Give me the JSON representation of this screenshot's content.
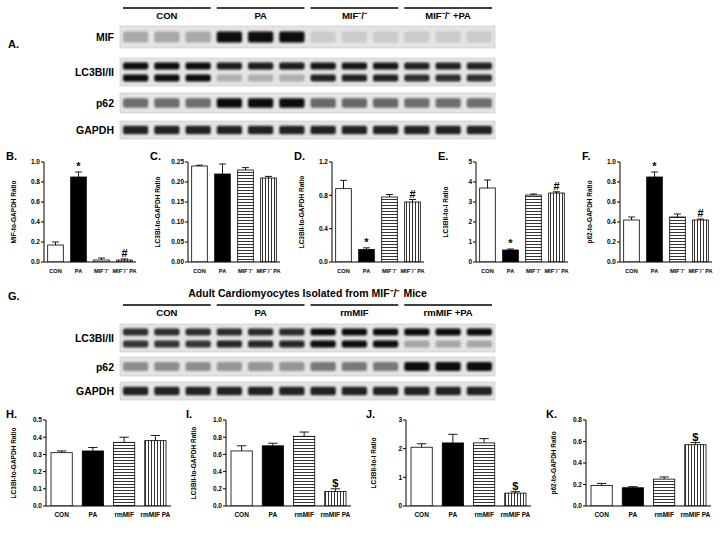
{
  "blots": [
    {
      "panel": "A.",
      "groups": [
        "CON",
        "PA",
        "MIF⁻/⁻",
        "MIF⁻/⁻ +PA"
      ],
      "rows": [
        "MIF",
        "LC3BI/II",
        "p62",
        "GAPDH"
      ]
    },
    {
      "panel": "G.",
      "title": "Adult Cardiomyocytes Isolated from MIF⁻/⁻ Mice",
      "groups": [
        "CON",
        "PA",
        "rmMIF",
        "rmMIF +PA"
      ],
      "rows": [
        "LC3BI/II",
        "p62",
        "GAPDH"
      ]
    }
  ],
  "chart_data": [
    {
      "type": "bar",
      "panel": "B.",
      "y_label": "MIF-to-GAPDH Ratio",
      "categories": [
        "CON",
        "PA",
        "MIF⁻/⁻",
        "MIF⁻/⁻ PA"
      ],
      "values": [
        0.17,
        0.85,
        0.02,
        0.02
      ],
      "errors": [
        0.03,
        0.05,
        0.02,
        0.01
      ],
      "significance": [
        null,
        "*",
        null,
        "#"
      ],
      "colors": [
        "#ffffff",
        "#000000",
        "#ffffff",
        "#ffffff"
      ],
      "ylim": [
        0,
        1
      ],
      "yticks": [
        {
          "value": 0,
          "label": "0.0"
        },
        0.2,
        0.4,
        0.6,
        0.8,
        {
          "value": 1,
          "label": "1.0"
        }
      ]
    },
    {
      "type": "bar",
      "panel": "C.",
      "y_label": "LC3BI-to-GAPDH Ratio",
      "categories": [
        "CON",
        "PA",
        "MIF⁻/⁻",
        "MIF⁻/⁻ PA"
      ],
      "values": [
        0.24,
        0.22,
        0.23,
        0.21
      ],
      "errors": [
        0.002,
        0.025,
        0.006,
        0.004
      ],
      "colors": [
        "#ffffff",
        "#000000",
        "#ffffff",
        "#ffffff"
      ],
      "ylim": [
        0,
        0.25
      ],
      "yticks": [
        {
          "value": 0,
          "label": "0.00"
        },
        0.05,
        {
          "value": 0.1,
          "label": "0.10"
        },
        0.15,
        {
          "value": 0.2,
          "label": "0.20"
        },
        0.25
      ]
    },
    {
      "type": "bar",
      "panel": "D.",
      "y_label": "LC3BII-to-GAPDH Ratio",
      "categories": [
        "CON",
        "PA",
        "MIF⁻/⁻",
        "MIF⁻/⁻ PA"
      ],
      "values": [
        0.88,
        0.15,
        0.78,
        0.72
      ],
      "errors": [
        0.1,
        0.02,
        0.03,
        0.03
      ],
      "significance": [
        null,
        "*",
        null,
        "#"
      ],
      "colors": [
        "#ffffff",
        "#000000",
        "#ffffff",
        "#ffffff"
      ],
      "ylim": [
        0,
        1.2
      ],
      "yticks": [
        {
          "value": 0,
          "label": "0.0"
        },
        0.4,
        0.8,
        1.2
      ]
    },
    {
      "type": "bar",
      "panel": "E.",
      "y_label": "LC3BII-to-I Ratio",
      "categories": [
        "CON",
        "PA",
        "MIF⁻/⁻",
        "MIF⁻/⁻ PA"
      ],
      "values": [
        3.7,
        0.6,
        3.35,
        3.45
      ],
      "errors": [
        0.4,
        0.05,
        0.05,
        0.06
      ],
      "significance": [
        null,
        "*",
        null,
        "#"
      ],
      "colors": [
        "#ffffff",
        "#000000",
        "#ffffff",
        "#ffffff"
      ],
      "ylim": [
        0,
        5
      ],
      "yticks": [
        0,
        1,
        2,
        3,
        4,
        5
      ]
    },
    {
      "type": "bar",
      "panel": "F.",
      "y_label": "p62-to-GAPDH Ratio",
      "categories": [
        "CON",
        "PA",
        "MIF⁻/⁻",
        "MIF⁻/⁻ PA"
      ],
      "values": [
        0.42,
        0.85,
        0.45,
        0.42
      ],
      "errors": [
        0.03,
        0.05,
        0.03,
        0.01
      ],
      "significance": [
        null,
        "*",
        null,
        "#"
      ],
      "colors": [
        "#ffffff",
        "#000000",
        "#ffffff",
        "#ffffff"
      ],
      "ylim": [
        0,
        1
      ],
      "yticks": [
        {
          "value": 0,
          "label": "0.0"
        },
        0.2,
        0.4,
        0.6,
        0.8,
        {
          "value": 1,
          "label": "1.0"
        }
      ]
    },
    {
      "type": "bar",
      "panel": "H.",
      "y_label": "LC3BI-to-GAPDH Ratio",
      "categories": [
        "CON",
        "PA",
        "rmMIF",
        "rmMIF PA"
      ],
      "values": [
        0.31,
        0.32,
        0.37,
        0.38
      ],
      "errors": [
        0.01,
        0.02,
        0.03,
        0.03
      ],
      "colors": [
        "#ffffff",
        "#000000",
        "#ffffff",
        "#ffffff"
      ],
      "ylim": [
        0,
        0.5
      ],
      "yticks": [
        {
          "value": 0,
          "label": "0.0"
        },
        0.1,
        0.2,
        0.3,
        0.4,
        0.5
      ]
    },
    {
      "type": "bar",
      "panel": "I.",
      "y_label": "LC3BII-to-GAPDH Ratio",
      "categories": [
        "CON",
        "PA",
        "rmMIF",
        "rmMIF PA"
      ],
      "values": [
        0.64,
        0.7,
        0.81,
        0.17
      ],
      "errors": [
        0.06,
        0.03,
        0.05,
        0.03
      ],
      "significance": [
        null,
        null,
        null,
        "$"
      ],
      "colors": [
        "#ffffff",
        "#000000",
        "#ffffff",
        "#ffffff"
      ],
      "ylim": [
        0,
        1
      ],
      "yticks": [
        {
          "value": 0,
          "label": "0.0"
        },
        0.2,
        0.4,
        0.6,
        0.8,
        {
          "value": 1,
          "label": "1.0"
        }
      ]
    },
    {
      "type": "bar",
      "panel": "J.",
      "y_label": "LC3BII-to-I Ratio",
      "categories": [
        "CON",
        "PA",
        "rmMIF",
        "rmMIF PA"
      ],
      "values": [
        2.05,
        2.2,
        2.2,
        0.45
      ],
      "errors": [
        0.12,
        0.3,
        0.15,
        0.05
      ],
      "significance": [
        null,
        null,
        null,
        "$"
      ],
      "colors": [
        "#ffffff",
        "#000000",
        "#ffffff",
        "#ffffff"
      ],
      "ylim": [
        0,
        3
      ],
      "yticks": [
        0,
        1,
        2,
        3
      ]
    },
    {
      "type": "bar",
      "panel": "K.",
      "y_label": "p62-to-GAPDH Ratio",
      "categories": [
        "CON",
        "PA",
        "rmMIF",
        "rmMIF PA"
      ],
      "values": [
        0.19,
        0.17,
        0.25,
        0.57
      ],
      "errors": [
        0.02,
        0.01,
        0.02,
        0.02
      ],
      "significance": [
        null,
        null,
        null,
        "$"
      ],
      "colors": [
        "#ffffff",
        "#000000",
        "#ffffff",
        "#ffffff"
      ],
      "ylim": [
        0,
        0.8
      ],
      "yticks": [
        {
          "value": 0,
          "label": "0.0"
        },
        0.2,
        0.4,
        0.6,
        0.8
      ]
    }
  ]
}
